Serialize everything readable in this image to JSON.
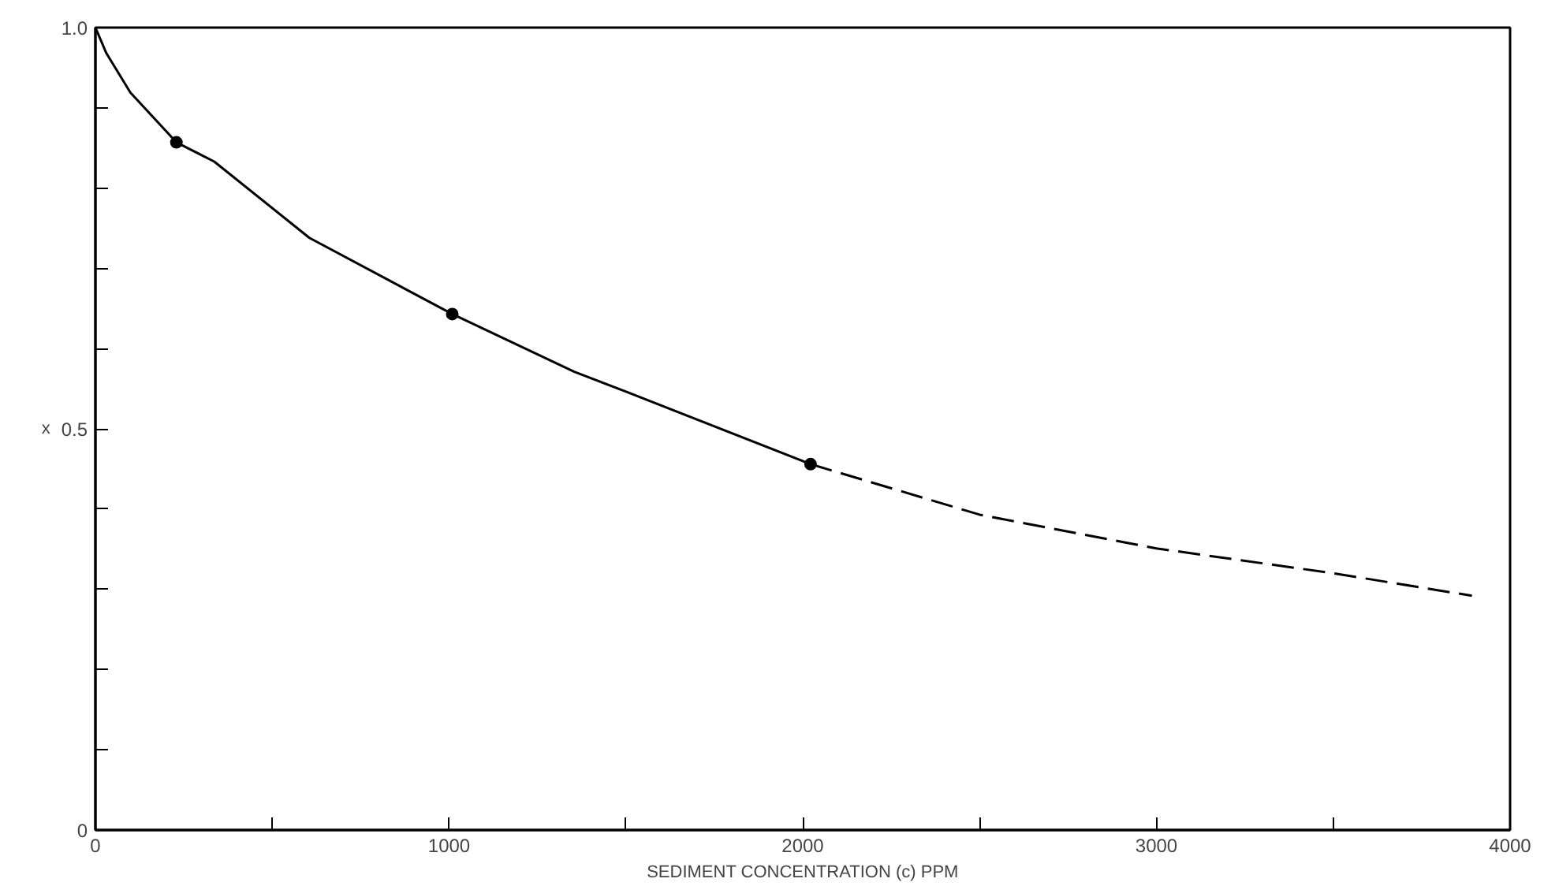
{
  "chart_data": {
    "type": "line",
    "xlabel": "SEDIMENT CONCENTRATION (c) PPM",
    "ylabel": "x",
    "xlim": [
      0,
      4000
    ],
    "ylim": [
      0,
      1
    ],
    "xticks": [
      0,
      {
        "value": 500,
        "label": null
      },
      1000,
      {
        "value": 1500,
        "label": null
      },
      2000,
      {
        "value": 2500,
        "label": null
      },
      3000,
      {
        "value": 3500,
        "label": null
      },
      4000
    ],
    "yticks": [
      0,
      {
        "value": 0.1,
        "label": null
      },
      {
        "value": 0.2,
        "label": null
      },
      {
        "value": 0.3,
        "label": null
      },
      {
        "value": 0.4,
        "label": null
      },
      0.5,
      {
        "value": 0.6,
        "label": null
      },
      {
        "value": 0.7,
        "label": null
      },
      {
        "value": 0.8,
        "label": null
      },
      {
        "value": 0.9,
        "label": null
      },
      {
        "value": 1,
        "label": "1.0"
      }
    ],
    "grid": false,
    "series": [
      {
        "color": "#000000",
        "line_style": "solid",
        "marker": "none",
        "x": [
          0,
          31,
          99,
          229,
          336,
          605,
          1009,
          1354,
          1502,
          2022
        ],
        "values": [
          1.0,
          0.968,
          0.919,
          0.857,
          0.833,
          0.738,
          0.643,
          0.571,
          0.546,
          0.456
        ]
      },
      {
        "color": "#000000",
        "line_style": "dashed",
        "marker": "none",
        "x": [
          2022,
          2500,
          3000,
          3500,
          3892
        ],
        "values": [
          0.456,
          0.393,
          0.351,
          0.32,
          0.292
        ]
      },
      {
        "type": "scatter",
        "color": "#000000",
        "marker": "circle",
        "x": [
          229,
          1009,
          2022
        ],
        "values": [
          0.857,
          0.643,
          0.456
        ]
      }
    ]
  }
}
